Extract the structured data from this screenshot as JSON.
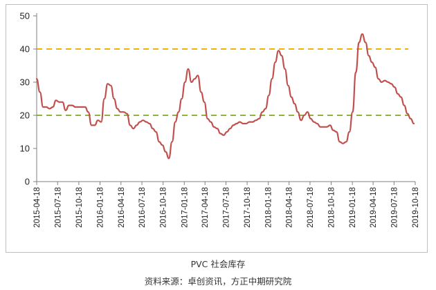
{
  "caption": "PVC 社会库存",
  "source": "资料来源：卓创资讯，方正中期研究院",
  "colors": {
    "series_line": "#c0504d",
    "reference_high": "#f4b000",
    "reference_low": "#8db33a",
    "axis": "#7f7f7f"
  },
  "chart_data": {
    "type": "line",
    "title": "",
    "xlabel": "",
    "ylabel": "",
    "ylim": [
      0,
      50
    ],
    "yticks": [
      0,
      10,
      20,
      30,
      40,
      50
    ],
    "grid": false,
    "legend": "none",
    "x_tick_labels": [
      "2015-04-18",
      "2015-07-18",
      "2015-10-18",
      "2016-01-18",
      "2016-04-18",
      "2016-07-18",
      "2016-10-18",
      "2017-01-18",
      "2017-04-18",
      "2017-07-18",
      "2017-10-18",
      "2018-01-18",
      "2018-04-18",
      "2018-07-18",
      "2018-10-18",
      "2019-01-18",
      "2019-04-18",
      "2019-07-18",
      "2019-10-18"
    ],
    "reference_lines": [
      {
        "y": 40,
        "style": "dashed",
        "color": "#f4b000"
      },
      {
        "y": 20,
        "style": "dashed",
        "color": "#8db33a"
      }
    ],
    "series": [
      {
        "points": [
          [
            "2015-04-18",
            31
          ],
          [
            "2015-05-02",
            27
          ],
          [
            "2015-05-16",
            22.5
          ],
          [
            "2015-05-30",
            22.5
          ],
          [
            "2015-06-13",
            22
          ],
          [
            "2015-06-27",
            22.5
          ],
          [
            "2015-07-11",
            24.5
          ],
          [
            "2015-07-25",
            24
          ],
          [
            "2015-08-08",
            24
          ],
          [
            "2015-08-22",
            21.5
          ],
          [
            "2015-09-05",
            23
          ],
          [
            "2015-09-19",
            23
          ],
          [
            "2015-10-03",
            22.5
          ],
          [
            "2015-10-17",
            22.5
          ],
          [
            "2015-10-31",
            22.5
          ],
          [
            "2015-11-14",
            22.5
          ],
          [
            "2015-11-28",
            21
          ],
          [
            "2015-12-12",
            17
          ],
          [
            "2015-12-26",
            17
          ],
          [
            "2016-01-09",
            18.5
          ],
          [
            "2016-01-23",
            18
          ],
          [
            "2016-02-06",
            25
          ],
          [
            "2016-02-20",
            29.5
          ],
          [
            "2016-03-05",
            29
          ],
          [
            "2016-03-19",
            25
          ],
          [
            "2016-04-02",
            22
          ],
          [
            "2016-04-16",
            21
          ],
          [
            "2016-04-30",
            21
          ],
          [
            "2016-05-14",
            20.5
          ],
          [
            "2016-05-28",
            17
          ],
          [
            "2016-06-11",
            16
          ],
          [
            "2016-06-25",
            17
          ],
          [
            "2016-07-09",
            18
          ],
          [
            "2016-07-23",
            18.5
          ],
          [
            "2016-08-06",
            18
          ],
          [
            "2016-08-20",
            17.5
          ],
          [
            "2016-09-03",
            16
          ],
          [
            "2016-09-17",
            15
          ],
          [
            "2016-10-01",
            12
          ],
          [
            "2016-10-15",
            11
          ],
          [
            "2016-10-29",
            9
          ],
          [
            "2016-11-12",
            7
          ],
          [
            "2016-11-26",
            12
          ],
          [
            "2016-12-10",
            18
          ],
          [
            "2016-12-24",
            21
          ],
          [
            "2017-01-07",
            25
          ],
          [
            "2017-01-21",
            30
          ],
          [
            "2017-02-04",
            34
          ],
          [
            "2017-02-18",
            30
          ],
          [
            "2017-03-04",
            31
          ],
          [
            "2017-03-18",
            32
          ],
          [
            "2017-04-01",
            27
          ],
          [
            "2017-04-15",
            24
          ],
          [
            "2017-04-29",
            19
          ],
          [
            "2017-05-13",
            18
          ],
          [
            "2017-05-27",
            16.5
          ],
          [
            "2017-06-10",
            16
          ],
          [
            "2017-06-24",
            14.5
          ],
          [
            "2017-07-08",
            14
          ],
          [
            "2017-07-22",
            15
          ],
          [
            "2017-08-05",
            16
          ],
          [
            "2017-08-19",
            17
          ],
          [
            "2017-09-02",
            17.5
          ],
          [
            "2017-09-16",
            18
          ],
          [
            "2017-09-30",
            17.5
          ],
          [
            "2017-10-14",
            17.5
          ],
          [
            "2017-10-28",
            18
          ],
          [
            "2017-11-11",
            18
          ],
          [
            "2017-11-25",
            18.5
          ],
          [
            "2017-12-09",
            19
          ],
          [
            "2017-12-23",
            21
          ],
          [
            "2018-01-06",
            22
          ],
          [
            "2018-01-20",
            26
          ],
          [
            "2018-02-03",
            31
          ],
          [
            "2018-02-17",
            36
          ],
          [
            "2018-03-03",
            39.5
          ],
          [
            "2018-03-17",
            38
          ],
          [
            "2018-03-31",
            34
          ],
          [
            "2018-04-14",
            29
          ],
          [
            "2018-04-28",
            25.5
          ],
          [
            "2018-05-12",
            23.5
          ],
          [
            "2018-05-26",
            21
          ],
          [
            "2018-06-09",
            18.5
          ],
          [
            "2018-06-23",
            20
          ],
          [
            "2018-07-07",
            21
          ],
          [
            "2018-07-21",
            19
          ],
          [
            "2018-08-04",
            18
          ],
          [
            "2018-08-18",
            17.5
          ],
          [
            "2018-09-01",
            16.5
          ],
          [
            "2018-09-15",
            16.5
          ],
          [
            "2018-09-29",
            16.5
          ],
          [
            "2018-10-13",
            17
          ],
          [
            "2018-10-27",
            15.5
          ],
          [
            "2018-11-10",
            15
          ],
          [
            "2018-11-24",
            12
          ],
          [
            "2018-12-08",
            11.5
          ],
          [
            "2018-12-22",
            12
          ],
          [
            "2019-01-05",
            15
          ],
          [
            "2019-01-19",
            21
          ],
          [
            "2019-02-02",
            33
          ],
          [
            "2019-02-16",
            42
          ],
          [
            "2019-03-02",
            44.5
          ],
          [
            "2019-03-16",
            42
          ],
          [
            "2019-03-30",
            38
          ],
          [
            "2019-04-13",
            36
          ],
          [
            "2019-04-27",
            34.5
          ],
          [
            "2019-05-11",
            31
          ],
          [
            "2019-05-25",
            30
          ],
          [
            "2019-06-08",
            30.5
          ],
          [
            "2019-06-22",
            30
          ],
          [
            "2019-07-06",
            29.5
          ],
          [
            "2019-07-20",
            28.5
          ],
          [
            "2019-08-03",
            26.5
          ],
          [
            "2019-08-17",
            25.5
          ],
          [
            "2019-08-31",
            23
          ],
          [
            "2019-09-14",
            20.5
          ],
          [
            "2019-09-28",
            19
          ],
          [
            "2019-10-12",
            17.5
          ]
        ]
      }
    ]
  }
}
